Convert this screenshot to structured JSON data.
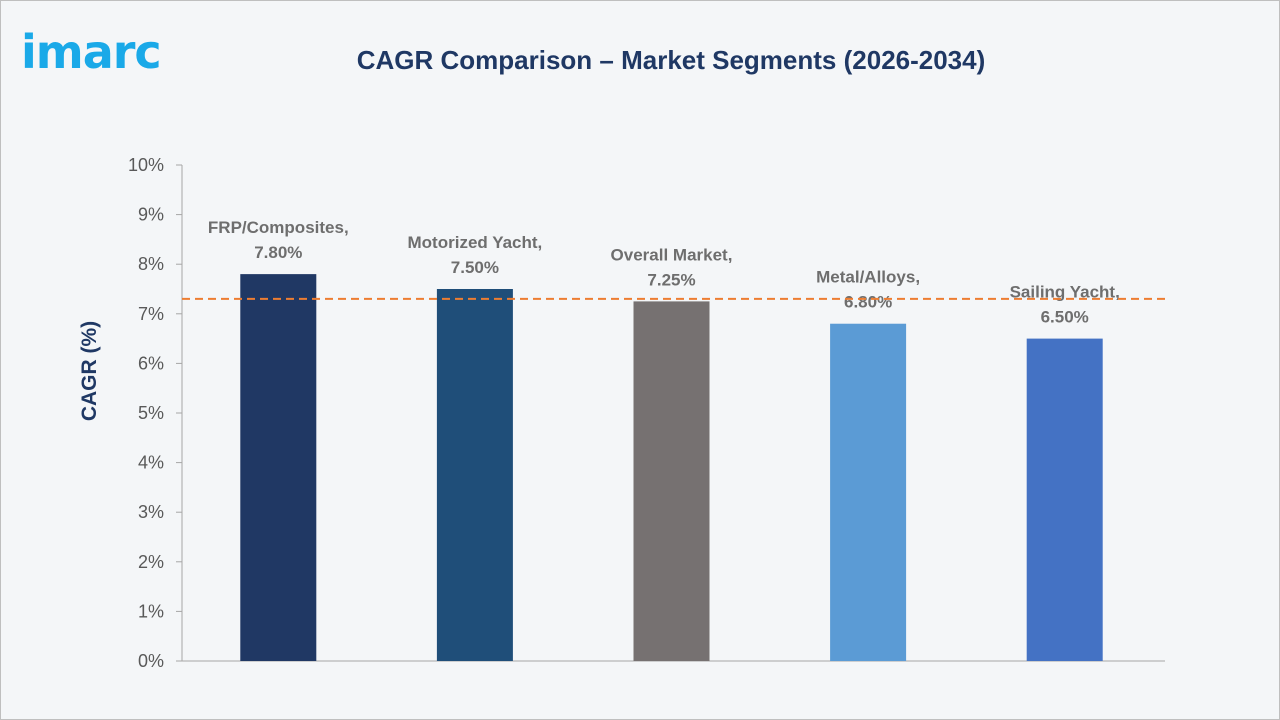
{
  "logo_text": "imarc",
  "chart_data": {
    "type": "bar",
    "title": "CAGR Comparison – Market Segments (2026-2034)",
    "ylabel": "CAGR (%)",
    "xlabel": "",
    "ylim": [
      0,
      10
    ],
    "yticks": [
      "0%",
      "1%",
      "2%",
      "3%",
      "4%",
      "5%",
      "6%",
      "7%",
      "8%",
      "9%",
      "10%"
    ],
    "categories": [
      "FRP/Composites,",
      "Motorized Yacht,",
      "Overall Market,",
      "Metal/Alloys,",
      "Sailing Yacht,"
    ],
    "values": [
      7.8,
      7.5,
      7.25,
      6.8,
      6.5
    ],
    "data_labels": [
      "7.80%",
      "7.50%",
      "7.25%",
      "6.80%",
      "6.50%"
    ],
    "colors": [
      "#203864",
      "#1f4e79",
      "#767171",
      "#5b9bd5",
      "#4472c4"
    ],
    "reference_line": {
      "value": 7.3,
      "style": "dashed",
      "color": "#ed7d31"
    },
    "grid": false,
    "legend": "none"
  }
}
